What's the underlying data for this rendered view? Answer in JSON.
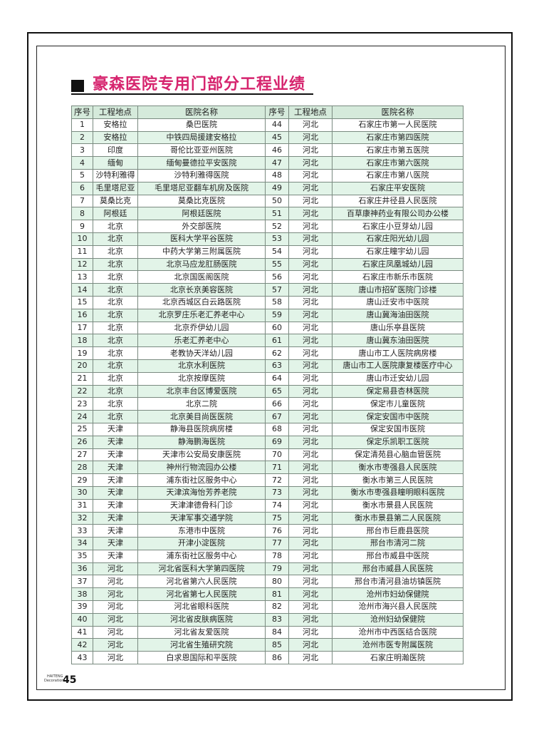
{
  "title": "豪森医院专用门部分工程业绩",
  "table": {
    "headers": [
      "序号",
      "工程地点",
      "医院名称",
      "序号",
      "工程地点",
      "医院名称"
    ],
    "left": [
      [
        "1",
        "安格拉",
        "桑巴医院"
      ],
      [
        "2",
        "安格拉",
        "中铁四局援建安格拉"
      ],
      [
        "3",
        "印度",
        "哥伦比亚亚州医院"
      ],
      [
        "4",
        "缅甸",
        "缅甸曼德拉平安医院"
      ],
      [
        "5",
        "沙特利雅得",
        "沙特利雅得医院"
      ],
      [
        "6",
        "毛里塔尼亚",
        "毛里塔尼亚翻车机房及医院"
      ],
      [
        "7",
        "莫桑比克",
        "莫桑比克医院"
      ],
      [
        "8",
        "阿根廷",
        "阿根廷医院"
      ],
      [
        "9",
        "北京",
        "外交部医院"
      ],
      [
        "10",
        "北京",
        "医科大学平谷医院"
      ],
      [
        "11",
        "北京",
        "中药大学第三附属医院"
      ],
      [
        "12",
        "北京",
        "北京马应龙肛肠医院"
      ],
      [
        "13",
        "北京",
        "北京国医阁医院"
      ],
      [
        "14",
        "北京",
        "北京长京美容医院"
      ],
      [
        "15",
        "北京",
        "北京西城区白云路医院"
      ],
      [
        "16",
        "北京",
        "北京罗庄乐老汇养老中心"
      ],
      [
        "17",
        "北京",
        "北京乔伊幼儿园"
      ],
      [
        "18",
        "北京",
        "乐老汇养老中心"
      ],
      [
        "19",
        "北京",
        "老教协天洋幼儿园"
      ],
      [
        "20",
        "北京",
        "北京水利医院"
      ],
      [
        "21",
        "北京",
        "北京按摩医院"
      ],
      [
        "22",
        "北京",
        "北京丰台区博爱医院"
      ],
      [
        "23",
        "北京",
        "北京二院"
      ],
      [
        "24",
        "北京",
        "北京美目尚医医院"
      ],
      [
        "25",
        "天津",
        "静海县医院病房楼"
      ],
      [
        "26",
        "天津",
        "静海鹏海医院"
      ],
      [
        "27",
        "天津",
        "天津市公安局安康医院"
      ],
      [
        "28",
        "天津",
        "神州行物流园办公楼"
      ],
      [
        "29",
        "天津",
        "浦东街社区服务中心"
      ],
      [
        "30",
        "天津",
        "天津滨海怡芳养老院"
      ],
      [
        "31",
        "天津",
        "天津津德骨科门诊"
      ],
      [
        "32",
        "天津",
        "天津军事交通学院"
      ],
      [
        "33",
        "天津",
        "东港市中医院"
      ],
      [
        "34",
        "天津",
        "开津小淀医院"
      ],
      [
        "35",
        "天津",
        "浦东街社区服务中心"
      ],
      [
        "36",
        "河北",
        "河北省医科大学第四医院"
      ],
      [
        "37",
        "河北",
        "河北省第六人民医院"
      ],
      [
        "38",
        "河北",
        "河北省第七人民医院"
      ],
      [
        "39",
        "河北",
        "河北省眼科医院"
      ],
      [
        "40",
        "河北",
        "河北省皮肤病医院"
      ],
      [
        "41",
        "河北",
        "河北省友爱医院"
      ],
      [
        "42",
        "河北",
        "河北省生殖研究院"
      ],
      [
        "43",
        "河北",
        "白求恩国际和平医院"
      ]
    ],
    "right": [
      [
        "44",
        "河北",
        "石家庄市第一人民医院"
      ],
      [
        "45",
        "河北",
        "石家庄市第四医院"
      ],
      [
        "46",
        "河北",
        "石家庄市第五医院"
      ],
      [
        "47",
        "河北",
        "石家庄市第六医院"
      ],
      [
        "48",
        "河北",
        "石家庄市第八医院"
      ],
      [
        "49",
        "河北",
        "石家庄平安医院"
      ],
      [
        "50",
        "河北",
        "石家庄井径县人民医院"
      ],
      [
        "51",
        "河北",
        "百草康神药业有限公司办公楼"
      ],
      [
        "52",
        "河北",
        "石家庄小豆芽幼儿园"
      ],
      [
        "53",
        "河北",
        "石家庄阳光幼儿园"
      ],
      [
        "54",
        "河北",
        "石家庄瞳宇幼儿园"
      ],
      [
        "55",
        "河北",
        "石家庄凤凰城幼儿园"
      ],
      [
        "56",
        "河北",
        "石家庄市新乐市医院"
      ],
      [
        "57",
        "河北",
        "唐山市招矿医院门诊楼"
      ],
      [
        "58",
        "河北",
        "唐山迁安市中医院"
      ],
      [
        "59",
        "河北",
        "唐山冀海油田医院"
      ],
      [
        "60",
        "河北",
        "唐山乐亭县医院"
      ],
      [
        "61",
        "河北",
        "唐山冀东油田医院"
      ],
      [
        "62",
        "河北",
        "唐山市工人医院病房楼"
      ],
      [
        "63",
        "河北",
        "唐山市工人医院康复楼医疗中心"
      ],
      [
        "64",
        "河北",
        "唐山市迁安幼儿园"
      ],
      [
        "65",
        "河北",
        "保定易县杏林医院"
      ],
      [
        "66",
        "河北",
        "保定市儿童医院"
      ],
      [
        "67",
        "河北",
        "保定安国市中医院"
      ],
      [
        "68",
        "河北",
        "保定安国市医院"
      ],
      [
        "69",
        "河北",
        "保定乐凯职工医院"
      ],
      [
        "70",
        "河北",
        "保定清苑县心脑血管医院"
      ],
      [
        "71",
        "河北",
        "衡水市枣强县人民医院"
      ],
      [
        "72",
        "河北",
        "衡水市第三人民医院"
      ],
      [
        "73",
        "河北",
        "衡水市枣强县瞳明眼科医院"
      ],
      [
        "74",
        "河北",
        "衡水市景县人民医院"
      ],
      [
        "75",
        "河北",
        "衡水市景县第二人民医院"
      ],
      [
        "76",
        "河北",
        "邢台市巨鹿县医院"
      ],
      [
        "77",
        "河北",
        "邢台市清河二院"
      ],
      [
        "78",
        "河北",
        "邢台市威县中医院"
      ],
      [
        "79",
        "河北",
        "邢台市威县人民医院"
      ],
      [
        "80",
        "河北",
        "邢台市清河县油坊镇医院"
      ],
      [
        "81",
        "河北",
        "沧州市妇幼保健院"
      ],
      [
        "82",
        "河北",
        "沧州市海兴县人民医院"
      ],
      [
        "83",
        "河北",
        "沧州妇幼保健院"
      ],
      [
        "84",
        "河北",
        "沧州市中西医结合医院"
      ],
      [
        "85",
        "河北",
        "沧州市医专附属医院"
      ],
      [
        "86",
        "河北",
        "石家庄明瀚医院"
      ]
    ]
  },
  "footer": {
    "brand_line1": "HAITENG",
    "brand_line2": "Decoration",
    "page_number": "45"
  },
  "colors": {
    "title": "#d6246e",
    "header_bg": "#d5eadb",
    "stripe_bg": "#e2f4e8"
  }
}
